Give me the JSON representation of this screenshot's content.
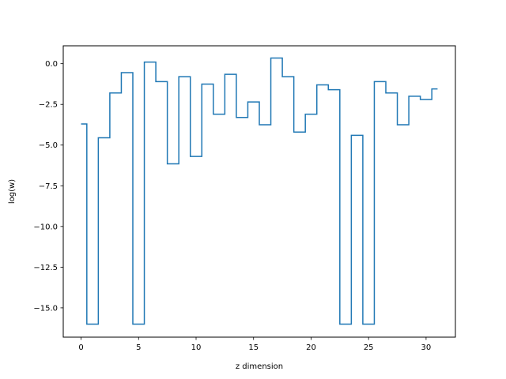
{
  "chart_data": {
    "type": "line",
    "drawstyle": "steps-mid",
    "title": "",
    "xlabel": "z dimension",
    "ylabel": "log(w)",
    "xlim": [
      -1.55,
      32.55
    ],
    "ylim": [
      -16.8,
      1.1
    ],
    "xticks": [
      0,
      5,
      10,
      15,
      20,
      25,
      30
    ],
    "xtick_labels": [
      "0",
      "5",
      "10",
      "15",
      "20",
      "25",
      "30"
    ],
    "yticks": [
      0.0,
      -2.5,
      -5.0,
      -7.5,
      -10.0,
      -12.5,
      -15.0
    ],
    "ytick_labels": [
      "0.0",
      "−2.5",
      "−5.0",
      "−7.5",
      "−10.0",
      "−12.5",
      "−15.0"
    ],
    "grid": false,
    "legend": false,
    "series": [
      {
        "color": "#1f77b4",
        "x": [
          0,
          1,
          2,
          3,
          4,
          5,
          6,
          7,
          8,
          9,
          10,
          11,
          12,
          13,
          14,
          15,
          16,
          17,
          18,
          19,
          20,
          21,
          22,
          23,
          24,
          25,
          26,
          27,
          28,
          29,
          30,
          31
        ],
        "values": [
          -3.7,
          -16.0,
          -4.55,
          -1.8,
          -0.55,
          -16.0,
          0.1,
          -1.1,
          -6.15,
          -0.8,
          -5.7,
          -1.25,
          -3.1,
          -0.65,
          -3.3,
          -2.35,
          -3.75,
          0.35,
          -0.8,
          -4.2,
          -3.1,
          -1.3,
          -1.6,
          -16.0,
          -4.4,
          -16.0,
          -1.1,
          -1.8,
          -3.75,
          -2.0,
          -2.2,
          -1.55
        ]
      }
    ]
  }
}
